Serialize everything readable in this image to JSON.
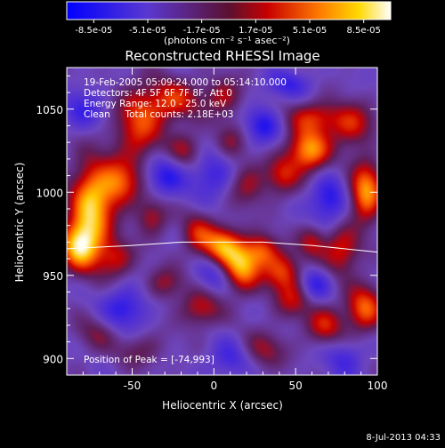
{
  "colorbar": {
    "tick_labels": [
      "-8.5e-05",
      "-5.1e-05",
      "-1.7e-05",
      "1.7e-05",
      "5.1e-05",
      "8.5e-05"
    ],
    "range": [
      -8.5e-05,
      8.5e-05
    ],
    "units": "(photons cm⁻² s⁻¹ asec⁻²)"
  },
  "chart_data": {
    "type": "heatmap",
    "title": "Reconstructed RHESSI Image",
    "xlabel": "Heliocentric X (arcsec)",
    "ylabel": "Heliocentric Y (arcsec)",
    "xlim": [
      -90,
      100
    ],
    "ylim": [
      890,
      1075
    ],
    "x_ticks": [
      -50,
      0,
      50,
      100
    ],
    "y_ticks": [
      900,
      950,
      1000,
      1050
    ],
    "colormap": "rhessi-blue-purple-red-yellow-white",
    "info_lines": [
      "19-Feb-2005 05:09:24.000 to 05:14:10.000",
      "Detectors: 4F 5F 6F 7F 8F, Att 0",
      "Energy Range: 12.0 - 25.0 keV",
      "Clean     Total counts: 2.18E+03"
    ],
    "peak_label": "Position of Peak = [-74,993]",
    "peak_position": [
      -74,
      993
    ],
    "limb_curve": [
      [
        -90,
        966
      ],
      [
        -50,
        968
      ],
      [
        -20,
        970
      ],
      [
        0,
        970
      ],
      [
        30,
        970
      ],
      [
        60,
        968
      ],
      [
        100,
        964
      ]
    ],
    "blobs": [
      {
        "x": -75,
        "y": 990,
        "sx": 9,
        "sy": 20,
        "v": 1.0
      },
      {
        "x": -83,
        "y": 968,
        "sx": 8,
        "sy": 10,
        "v": 0.9
      },
      {
        "x": -58,
        "y": 1005,
        "sx": 9,
        "sy": 10,
        "v": 0.7
      },
      {
        "x": -46,
        "y": 1040,
        "sx": 10,
        "sy": 16,
        "v": 0.65
      },
      {
        "x": -25,
        "y": 1055,
        "sx": 12,
        "sy": 9,
        "v": 0.6
      },
      {
        "x": 6,
        "y": 1058,
        "sx": 8,
        "sy": 8,
        "v": 0.45
      },
      {
        "x": -60,
        "y": 960,
        "sx": 8,
        "sy": 8,
        "v": 0.5
      },
      {
        "x": -38,
        "y": 985,
        "sx": 7,
        "sy": 8,
        "v": 0.45
      },
      {
        "x": -10,
        "y": 975,
        "sx": 7,
        "sy": 9,
        "v": 0.5
      },
      {
        "x": 5,
        "y": 968,
        "sx": 8,
        "sy": 8,
        "v": 0.85
      },
      {
        "x": 17,
        "y": 955,
        "sx": 8,
        "sy": 10,
        "v": 0.95
      },
      {
        "x": 30,
        "y": 965,
        "sx": 7,
        "sy": 7,
        "v": 0.6
      },
      {
        "x": 42,
        "y": 952,
        "sx": 8,
        "sy": 8,
        "v": 0.65
      },
      {
        "x": 58,
        "y": 1025,
        "sx": 9,
        "sy": 9,
        "v": 0.95
      },
      {
        "x": 62,
        "y": 1045,
        "sx": 12,
        "sy": 7,
        "v": 0.55
      },
      {
        "x": 42,
        "y": 1010,
        "sx": 7,
        "sy": 8,
        "v": 0.5
      },
      {
        "x": 93,
        "y": 1000,
        "sx": 7,
        "sy": 12,
        "v": 0.95
      },
      {
        "x": 85,
        "y": 1040,
        "sx": 9,
        "sy": 9,
        "v": 0.55
      },
      {
        "x": 78,
        "y": 965,
        "sx": 8,
        "sy": 10,
        "v": 0.6
      },
      {
        "x": 60,
        "y": 970,
        "sx": 6,
        "sy": 7,
        "v": 0.45
      },
      {
        "x": 20,
        "y": 1005,
        "sx": 9,
        "sy": 9,
        "v": 0.45
      },
      {
        "x": 10,
        "y": 1030,
        "sx": 7,
        "sy": 8,
        "v": 0.35
      },
      {
        "x": -18,
        "y": 1025,
        "sx": 8,
        "sy": 8,
        "v": 0.4
      },
      {
        "x": 92,
        "y": 930,
        "sx": 8,
        "sy": 10,
        "v": 0.75
      },
      {
        "x": 68,
        "y": 920,
        "sx": 8,
        "sy": 8,
        "v": 0.55
      },
      {
        "x": 48,
        "y": 935,
        "sx": 8,
        "sy": 8,
        "v": 0.45
      },
      {
        "x": -8,
        "y": 930,
        "sx": 9,
        "sy": 8,
        "v": 0.5
      },
      {
        "x": -30,
        "y": 945,
        "sx": 8,
        "sy": 7,
        "v": 0.4
      },
      {
        "x": -72,
        "y": 915,
        "sx": 9,
        "sy": 8,
        "v": 0.3
      },
      {
        "x": 30,
        "y": 905,
        "sx": 10,
        "sy": 8,
        "v": 0.4
      },
      {
        "x": -45,
        "y": 905,
        "sx": 10,
        "sy": 7,
        "v": 0.3
      },
      {
        "x": 30,
        "y": 1040,
        "sx": 8,
        "sy": 8,
        "v": -0.5
      },
      {
        "x": 0,
        "y": 1010,
        "sx": 10,
        "sy": 10,
        "v": -0.45
      },
      {
        "x": -30,
        "y": 1010,
        "sx": 9,
        "sy": 9,
        "v": -0.5
      },
      {
        "x": 70,
        "y": 995,
        "sx": 8,
        "sy": 10,
        "v": -0.55
      },
      {
        "x": 0,
        "y": 950,
        "sx": 8,
        "sy": 8,
        "v": -0.35
      },
      {
        "x": 62,
        "y": 945,
        "sx": 7,
        "sy": 7,
        "v": -0.45
      },
      {
        "x": -55,
        "y": 930,
        "sx": 10,
        "sy": 9,
        "v": -0.5
      },
      {
        "x": 10,
        "y": 900,
        "sx": 9,
        "sy": 8,
        "v": -0.4
      },
      {
        "x": 80,
        "y": 900,
        "sx": 9,
        "sy": 8,
        "v": -0.35
      },
      {
        "x": -80,
        "y": 1050,
        "sx": 9,
        "sy": 9,
        "v": -0.4
      },
      {
        "x": 45,
        "y": 1065,
        "sx": 10,
        "sy": 6,
        "v": -0.4
      }
    ]
  },
  "footer": {
    "date": "8-Jul-2013 04:33"
  }
}
